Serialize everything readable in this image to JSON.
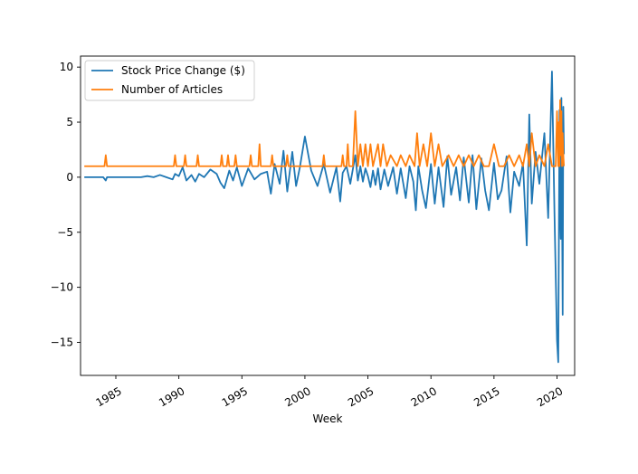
{
  "chart_data": {
    "type": "line",
    "title": "",
    "xlabel": "Week",
    "ylabel": "",
    "xlim": [
      1982.2,
      2021.4
    ],
    "ylim": [
      -18,
      11
    ],
    "x_ticks": [
      1985,
      1990,
      1995,
      2000,
      2005,
      2010,
      2015,
      2020
    ],
    "x_tick_labels": [
      "1985",
      "1990",
      "1995",
      "2000",
      "2005",
      "2010",
      "2015",
      "2020"
    ],
    "y_ticks": [
      10,
      5,
      0,
      -5,
      -10,
      -15
    ],
    "y_tick_labels": [
      "10",
      "5",
      "0",
      "−5",
      "−10",
      "−15"
    ],
    "grid": false,
    "legend_position": "top-left",
    "colors": {
      "stock": "#1f77b4",
      "articles": "#ff7f0e"
    },
    "series": [
      {
        "name": "Stock Price Change ($)",
        "color": "#1f77b4",
        "x": [
          1982.5,
          1983.2,
          1984.0,
          1984.2,
          1984.3,
          1985.0,
          1986.0,
          1987.0,
          1987.5,
          1988.0,
          1988.5,
          1989.0,
          1989.5,
          1989.7,
          1990.0,
          1990.3,
          1990.6,
          1991.0,
          1991.3,
          1991.6,
          1992.0,
          1992.5,
          1993.0,
          1993.3,
          1993.6,
          1994.0,
          1994.3,
          1994.6,
          1995.0,
          1995.5,
          1996.0,
          1996.5,
          1997.0,
          1997.3,
          1997.6,
          1998.0,
          1998.3,
          1998.6,
          1999.0,
          1999.3,
          1999.6,
          2000.0,
          2000.5,
          2001.0,
          2001.5,
          2002.0,
          2002.5,
          2002.8,
          2003.0,
          2003.3,
          2003.6,
          2004.0,
          2004.2,
          2004.4,
          2004.6,
          2004.8,
          2005.0,
          2005.2,
          2005.4,
          2005.6,
          2005.8,
          2006.0,
          2006.3,
          2006.6,
          2007.0,
          2007.3,
          2007.6,
          2008.0,
          2008.3,
          2008.6,
          2008.8,
          2009.0,
          2009.3,
          2009.6,
          2010.0,
          2010.3,
          2010.6,
          2011.0,
          2011.3,
          2011.6,
          2012.0,
          2012.3,
          2012.6,
          2013.0,
          2013.3,
          2013.6,
          2014.0,
          2014.3,
          2014.6,
          2015.0,
          2015.3,
          2015.6,
          2016.0,
          2016.3,
          2016.6,
          2017.0,
          2017.3,
          2017.6,
          2017.8,
          2018.0,
          2018.3,
          2018.6,
          2019.0,
          2019.3,
          2019.6,
          2019.8,
          2020.0,
          2020.1,
          2020.2,
          2020.25,
          2020.3,
          2020.35,
          2020.4,
          2020.45,
          2020.5,
          2020.55
        ],
        "values": [
          0.0,
          0.0,
          0.0,
          -0.3,
          0.0,
          0.0,
          0.0,
          0.0,
          0.1,
          0.0,
          0.2,
          0.0,
          -0.2,
          0.3,
          0.1,
          0.9,
          -0.3,
          0.2,
          -0.4,
          0.3,
          0.0,
          0.7,
          0.3,
          -0.5,
          -1.0,
          0.6,
          -0.3,
          0.9,
          -0.8,
          0.8,
          -0.2,
          0.3,
          0.5,
          -1.5,
          1.2,
          -0.6,
          2.4,
          -1.3,
          2.3,
          -0.8,
          0.9,
          3.7,
          0.6,
          -0.8,
          1.2,
          -1.4,
          0.9,
          -2.2,
          0.4,
          1.0,
          -0.6,
          2.0,
          -0.3,
          1.0,
          -0.4,
          0.8,
          0.1,
          -0.9,
          0.6,
          -0.7,
          0.8,
          -1.1,
          0.7,
          -0.8,
          0.9,
          -1.5,
          0.8,
          -1.9,
          1.0,
          -0.4,
          -3.0,
          1.0,
          -1.2,
          -2.8,
          1.2,
          -2.4,
          0.9,
          -2.7,
          1.9,
          -1.6,
          0.9,
          -2.1,
          1.8,
          -2.3,
          2.0,
          -2.9,
          1.7,
          -1.2,
          -3.0,
          1.3,
          -2.0,
          -1.2,
          1.9,
          -3.2,
          0.5,
          -0.8,
          1.3,
          -6.2,
          5.7,
          -2.4,
          2.3,
          -0.6,
          4.0,
          -3.7,
          9.6,
          -3.3,
          -14.8,
          -16.8,
          6.1,
          -3.1,
          -5.6,
          7.2,
          -2.8,
          -12.5,
          6.4,
          2.1
        ]
      },
      {
        "name": "Number of Articles",
        "color": "#ff7f0e",
        "x": [
          1982.5,
          1984.1,
          1984.2,
          1984.3,
          1989.6,
          1989.7,
          1989.8,
          1990.4,
          1990.5,
          1990.6,
          1991.4,
          1991.5,
          1991.6,
          1993.3,
          1993.4,
          1993.5,
          1993.8,
          1993.9,
          1994.0,
          1994.4,
          1994.5,
          1994.6,
          1995.6,
          1995.7,
          1995.8,
          1996.3,
          1996.4,
          1996.5,
          1997.3,
          1997.4,
          1997.5,
          1998.5,
          1998.6,
          1998.7,
          2001.4,
          2001.5,
          2001.6,
          2002.9,
          2003.0,
          2003.1,
          2003.3,
          2003.4,
          2003.5,
          2003.8,
          2004.0,
          2004.2,
          2004.4,
          2004.6,
          2004.8,
          2005.0,
          2005.2,
          2005.4,
          2005.6,
          2005.8,
          2006.0,
          2006.2,
          2006.5,
          2006.8,
          2007.3,
          2007.6,
          2008.0,
          2008.3,
          2008.7,
          2008.9,
          2009.1,
          2009.4,
          2009.7,
          2010.0,
          2010.3,
          2010.6,
          2010.9,
          2011.4,
          2011.8,
          2012.2,
          2012.6,
          2013.0,
          2013.4,
          2013.8,
          2014.2,
          2014.6,
          2015.0,
          2015.4,
          2015.8,
          2016.2,
          2016.6,
          2017.0,
          2017.3,
          2017.6,
          2017.8,
          2018.0,
          2018.3,
          2018.6,
          2019.0,
          2019.3,
          2019.6,
          2019.9,
          2020.0,
          2020.1,
          2020.15,
          2020.2,
          2020.25,
          2020.3,
          2020.35,
          2020.4,
          2020.45,
          2020.5,
          2020.55
        ],
        "values": [
          1,
          1,
          2,
          1,
          1,
          2,
          1,
          1,
          2,
          1,
          1,
          2,
          1,
          1,
          2,
          1,
          1,
          2,
          1,
          1,
          2,
          1,
          1,
          2,
          1,
          1,
          3,
          1,
          1,
          2,
          1,
          1,
          2,
          1,
          1,
          2,
          1,
          1,
          2,
          1,
          1,
          3,
          1,
          1,
          6,
          1,
          3,
          1,
          3,
          1,
          3,
          1,
          2,
          3,
          1,
          3,
          1,
          2,
          1,
          2,
          1,
          2,
          1,
          4,
          1,
          3,
          1,
          4,
          1,
          3,
          1,
          2,
          1,
          2,
          1,
          2,
          1,
          2,
          1,
          1,
          3,
          1,
          1,
          2,
          1,
          2,
          1,
          3,
          1,
          4,
          1,
          2,
          1,
          3,
          1,
          1,
          6,
          1,
          5,
          1,
          7,
          2,
          6,
          1,
          4,
          2,
          1
        ]
      }
    ]
  }
}
